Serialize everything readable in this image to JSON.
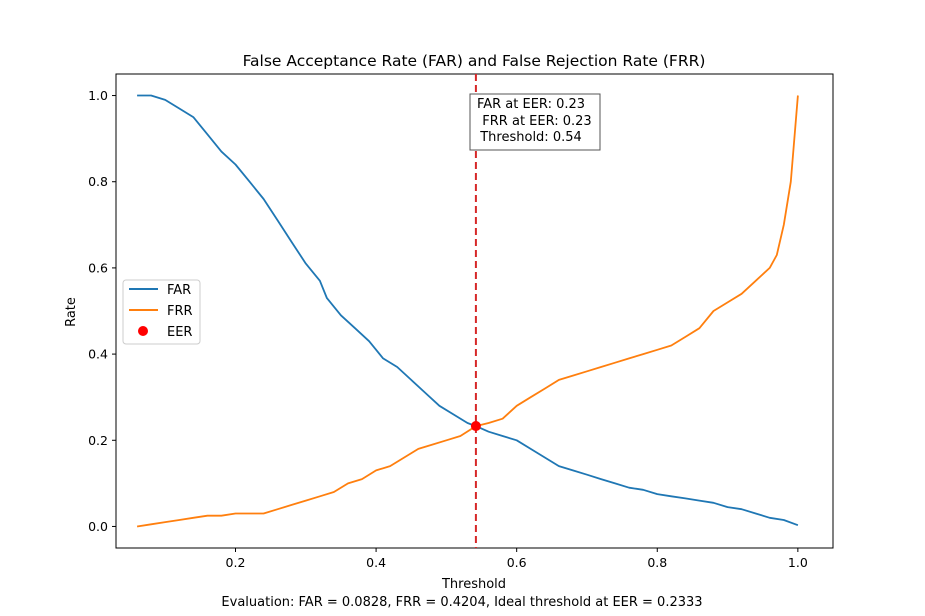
{
  "colors": {
    "far": "#1f77b4",
    "frr": "#ff7f0e",
    "eer": "#ff0000",
    "threshold_line": "#d62728"
  },
  "chart_data": {
    "type": "line",
    "title": "False Acceptance Rate (FAR) and False Rejection Rate (FRR)",
    "xlabel": "Threshold",
    "ylabel": "Rate",
    "xlim": [
      0.03,
      1.05
    ],
    "ylim": [
      -0.05,
      1.05
    ],
    "xticks": [
      0.2,
      0.4,
      0.6,
      0.8,
      1.0
    ],
    "xtick_labels": [
      "0.2",
      "0.4",
      "0.6",
      "0.8",
      "1.0"
    ],
    "yticks": [
      0.0,
      0.2,
      0.4,
      0.6,
      0.8,
      1.0
    ],
    "ytick_labels": [
      "0.0",
      "0.2",
      "0.4",
      "0.6",
      "0.8",
      "1.0"
    ],
    "grid": false,
    "legend_position": "center-left",
    "series": [
      {
        "name": "FAR",
        "x": [
          0.06,
          0.08,
          0.1,
          0.12,
          0.14,
          0.16,
          0.18,
          0.2,
          0.22,
          0.24,
          0.26,
          0.28,
          0.3,
          0.32,
          0.33,
          0.35,
          0.37,
          0.39,
          0.41,
          0.43,
          0.45,
          0.47,
          0.49,
          0.51,
          0.53,
          0.542,
          0.56,
          0.58,
          0.6,
          0.62,
          0.64,
          0.66,
          0.68,
          0.7,
          0.72,
          0.74,
          0.76,
          0.78,
          0.8,
          0.82,
          0.84,
          0.86,
          0.88,
          0.9,
          0.92,
          0.94,
          0.96,
          0.98,
          1.0
        ],
        "y": [
          1.0,
          1.0,
          0.99,
          0.97,
          0.95,
          0.91,
          0.87,
          0.84,
          0.8,
          0.76,
          0.71,
          0.66,
          0.61,
          0.57,
          0.53,
          0.49,
          0.46,
          0.43,
          0.39,
          0.37,
          0.34,
          0.31,
          0.28,
          0.26,
          0.24,
          0.233,
          0.22,
          0.21,
          0.2,
          0.18,
          0.16,
          0.14,
          0.13,
          0.12,
          0.11,
          0.1,
          0.09,
          0.085,
          0.075,
          0.07,
          0.065,
          0.06,
          0.055,
          0.045,
          0.04,
          0.03,
          0.02,
          0.015,
          0.003
        ]
      },
      {
        "name": "FRR",
        "x": [
          0.06,
          0.08,
          0.1,
          0.12,
          0.14,
          0.16,
          0.18,
          0.2,
          0.22,
          0.24,
          0.26,
          0.28,
          0.3,
          0.32,
          0.34,
          0.36,
          0.38,
          0.4,
          0.42,
          0.44,
          0.46,
          0.48,
          0.5,
          0.52,
          0.542,
          0.56,
          0.58,
          0.6,
          0.62,
          0.64,
          0.66,
          0.68,
          0.7,
          0.72,
          0.74,
          0.76,
          0.78,
          0.8,
          0.82,
          0.84,
          0.86,
          0.88,
          0.9,
          0.92,
          0.94,
          0.96,
          0.97,
          0.98,
          0.99,
          1.0
        ],
        "y": [
          0.0,
          0.005,
          0.01,
          0.015,
          0.02,
          0.025,
          0.025,
          0.03,
          0.03,
          0.03,
          0.04,
          0.05,
          0.06,
          0.07,
          0.08,
          0.1,
          0.11,
          0.13,
          0.14,
          0.16,
          0.18,
          0.19,
          0.2,
          0.21,
          0.233,
          0.24,
          0.25,
          0.28,
          0.3,
          0.32,
          0.34,
          0.35,
          0.36,
          0.37,
          0.38,
          0.39,
          0.4,
          0.41,
          0.42,
          0.44,
          0.46,
          0.5,
          0.52,
          0.54,
          0.57,
          0.6,
          0.63,
          0.7,
          0.8,
          1.0
        ]
      }
    ],
    "eer_point": {
      "label": "EER",
      "x": 0.542,
      "y": 0.233
    },
    "threshold_line_x": 0.542,
    "annotation": [
      "FAR at EER: 0.23",
      "FRR at EER: 0.23",
      "Threshold: 0.54"
    ],
    "footer": "Evaluation: FAR =  0.0828, FRR = 0.4204, Ideal threshold at EER = 0.2333"
  }
}
